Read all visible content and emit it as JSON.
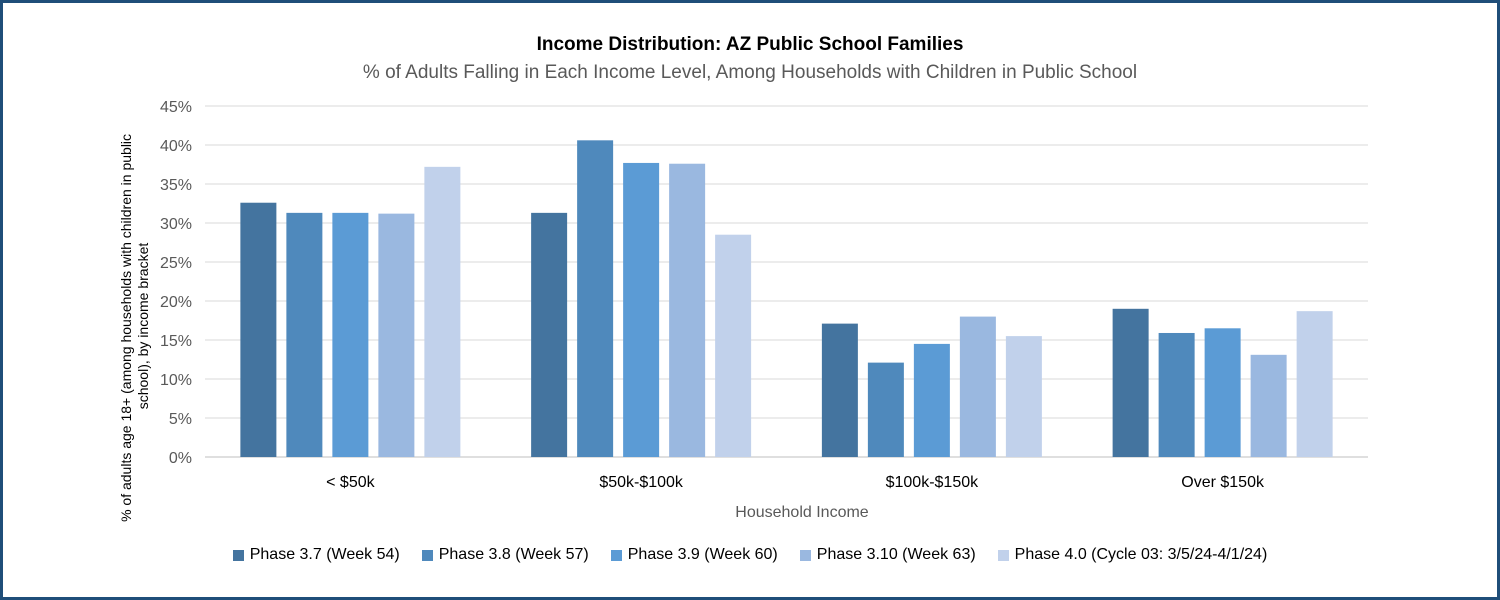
{
  "chart_data": {
    "type": "bar",
    "title": "Income Distribution: AZ Public School Families",
    "subtitle": "% of Adults Falling in Each Income Level, Among Households with Children in Public School",
    "xlabel": "Household Income",
    "ylabel_lines": [
      "% of adults age 18+ (among  households with children in public",
      "school), by income bracket"
    ],
    "categories": [
      "< $50k",
      "$50k-$100k",
      "$100k-$150k",
      "Over $150k"
    ],
    "ylim": [
      0,
      45
    ],
    "yticks": [
      0,
      5,
      10,
      15,
      20,
      25,
      30,
      35,
      40,
      45
    ],
    "ytick_labels": [
      "0%",
      "5%",
      "10%",
      "15%",
      "20%",
      "25%",
      "30%",
      "35%",
      "40%",
      "45%"
    ],
    "grid": true,
    "legend_position": "bottom",
    "series": [
      {
        "name": "Phase 3.7 (Week 54)",
        "color": "#44749f",
        "values": [
          32.6,
          31.3,
          17.1,
          19.0
        ]
      },
      {
        "name": "Phase 3.8 (Week 57)",
        "color": "#4f89bc",
        "values": [
          31.3,
          40.6,
          12.1,
          15.9
        ]
      },
      {
        "name": "Phase 3.9 (Week 60)",
        "color": "#5b9bd5",
        "values": [
          31.3,
          37.7,
          14.5,
          16.5
        ]
      },
      {
        "name": "Phase 3.10 (Week 63)",
        "color": "#9ab8e0",
        "values": [
          31.2,
          37.6,
          18.0,
          13.1
        ]
      },
      {
        "name": "Phase 4.0 (Cycle 03: 3/5/24-4/1/24)",
        "color": "#c1d1eb",
        "values": [
          37.2,
          28.5,
          15.5,
          18.7
        ]
      }
    ]
  }
}
